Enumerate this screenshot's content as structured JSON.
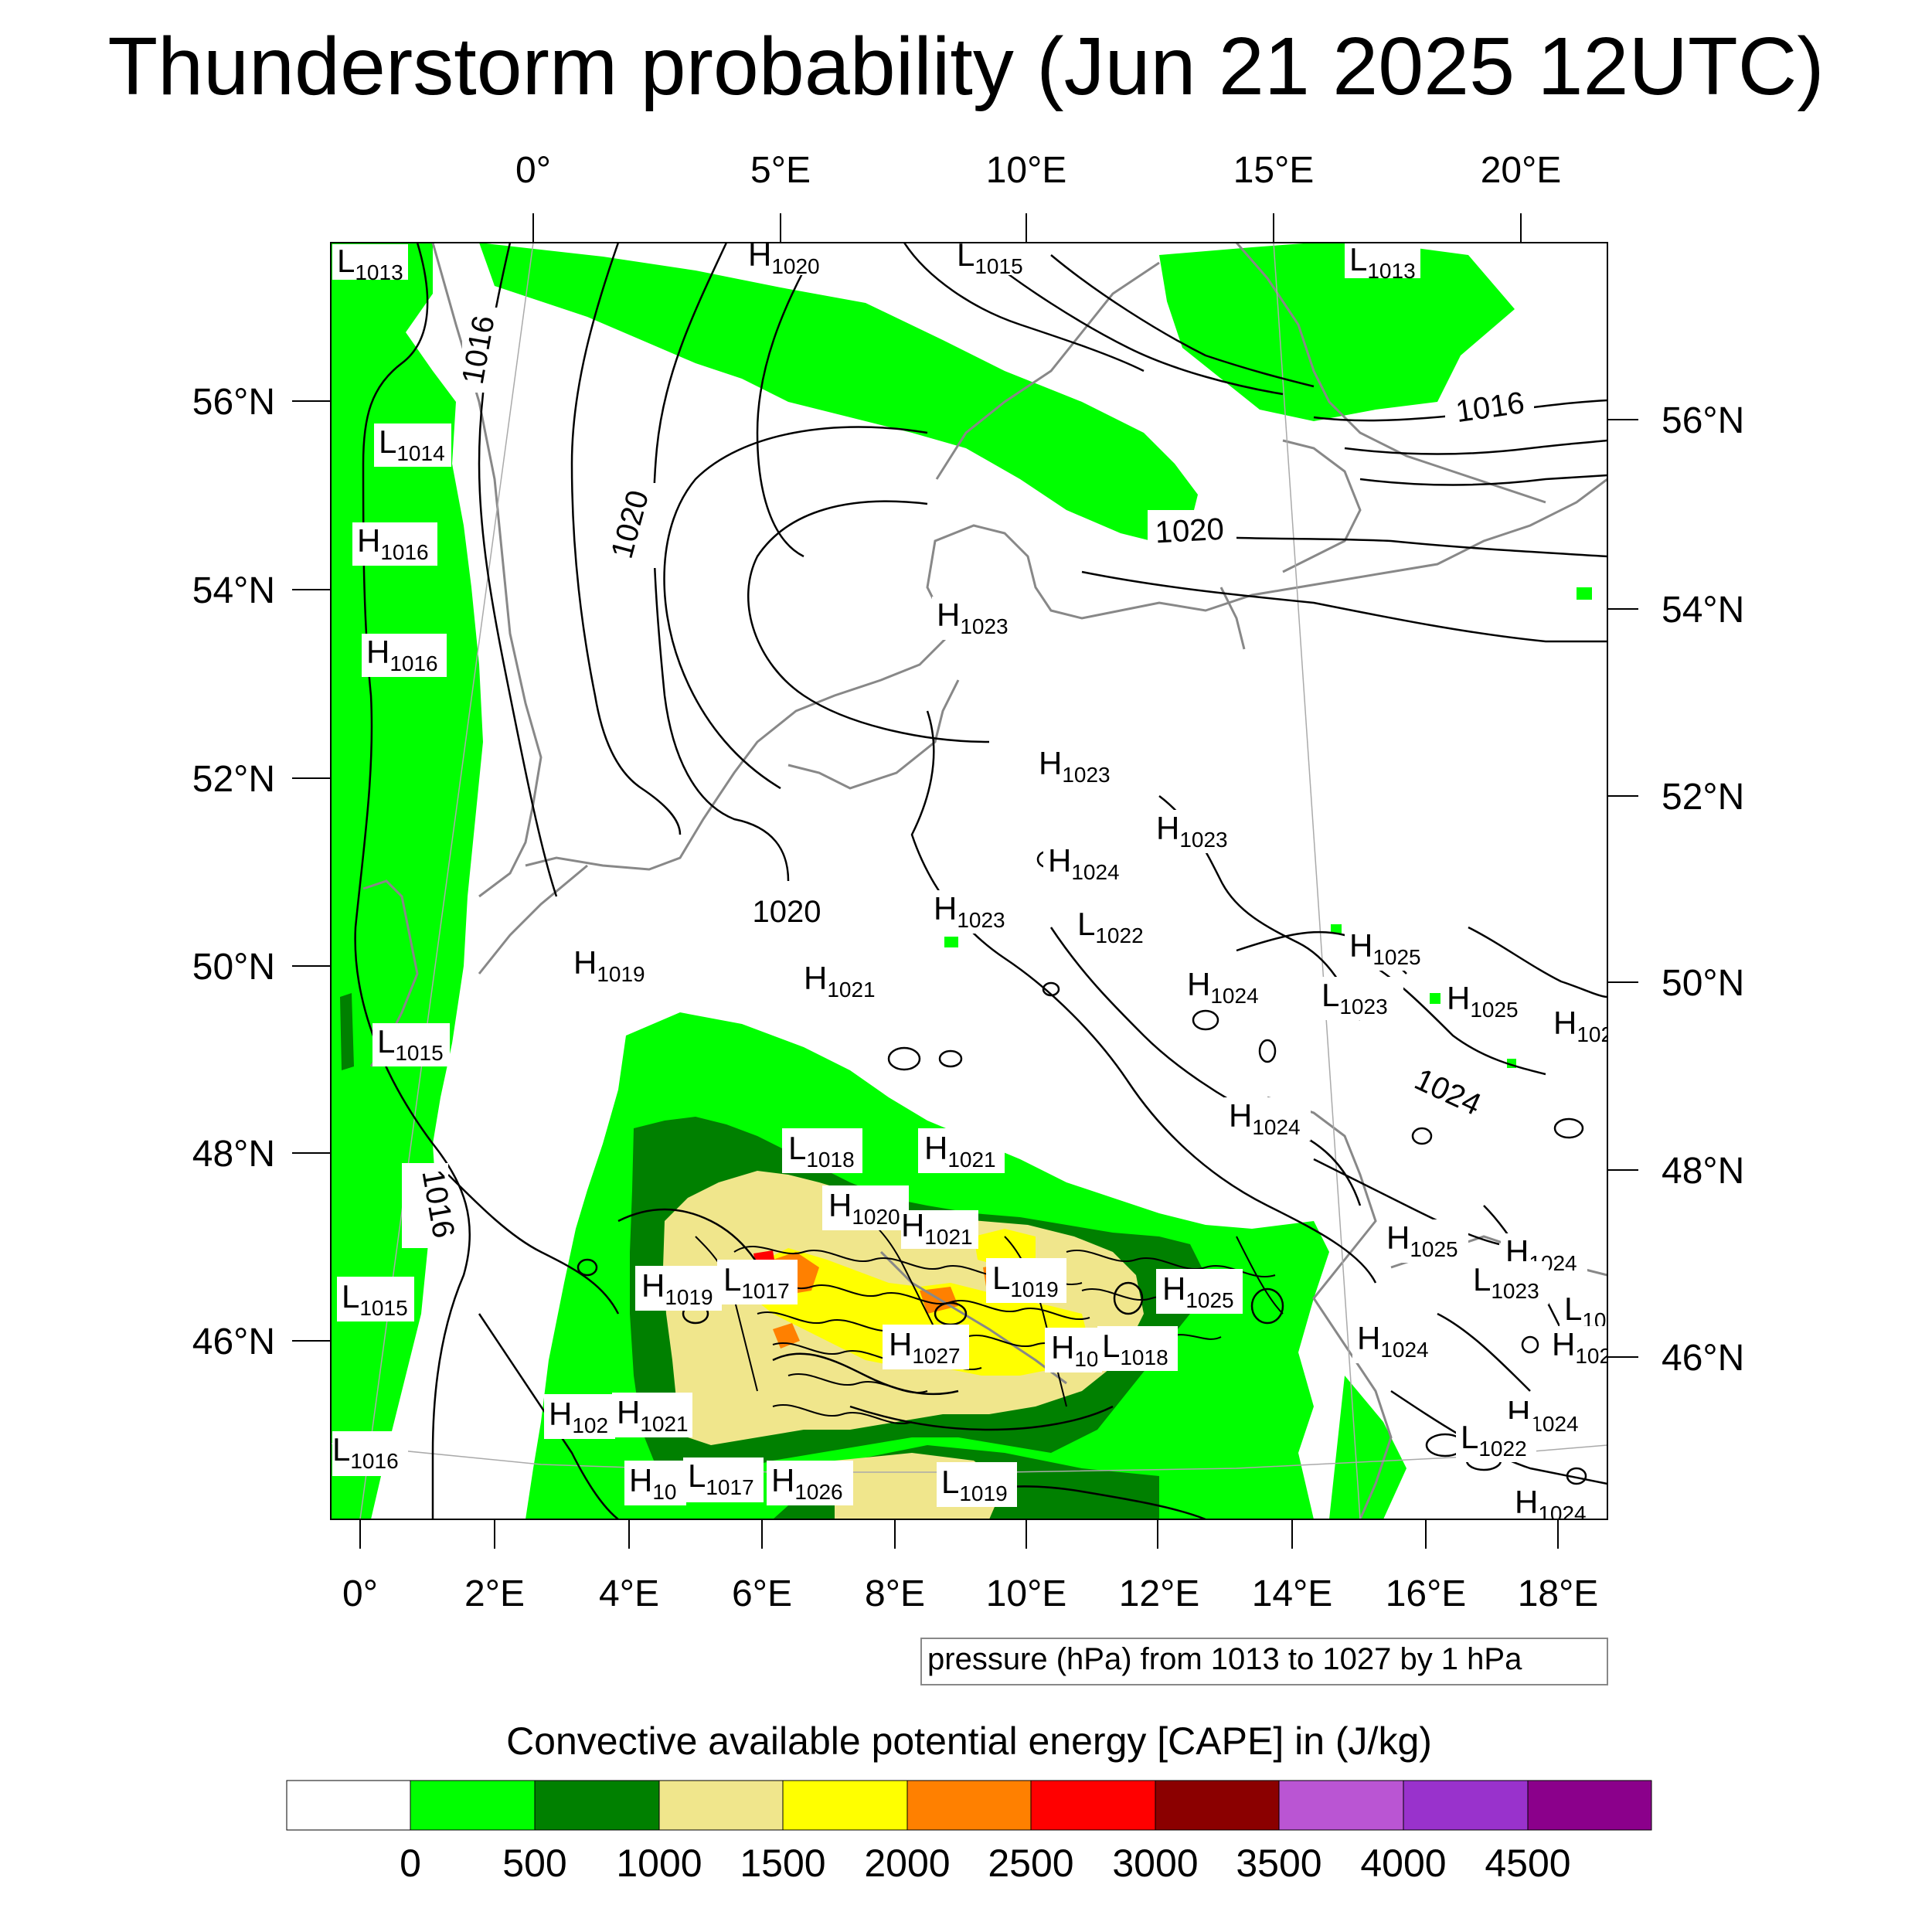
{
  "title": "Thunderstorm probability (Jun 21 2025 12UTC)",
  "top_lon_labels": [
    "0°",
    "5°E",
    "10°E",
    "15°E",
    "20°E"
  ],
  "bottom_lon_labels": [
    "0°",
    "2°E",
    "4°E",
    "6°E",
    "8°E",
    "10°E",
    "12°E",
    "14°E",
    "16°E",
    "18°E"
  ],
  "left_lat_labels": [
    "56°N",
    "54°N",
    "52°N",
    "50°N",
    "48°N",
    "46°N"
  ],
  "right_lat_labels": [
    "56°N",
    "54°N",
    "52°N",
    "50°N",
    "48°N",
    "46°N"
  ],
  "pressure_info": "pressure (hPa) from 1013 to 1027 by 1 hPa",
  "legend_title": "Convective available potential energy [CAPE] in (J/kg)",
  "colorbar": {
    "colors": [
      "#ffffff",
      "#00ff00",
      "#008000",
      "#f0e68c",
      "#ffff00",
      "#ff8000",
      "#ff0000",
      "#8b0000",
      "#ba55d3",
      "#9932cc",
      "#8b008b"
    ],
    "labels": [
      "0",
      "500",
      "1000",
      "1500",
      "2000",
      "2500",
      "3000",
      "3500",
      "4000",
      "4500"
    ]
  },
  "isobar_labels": [
    {
      "text": "1016"
    },
    {
      "text": "1020"
    },
    {
      "text": "1016"
    },
    {
      "text": "1020"
    },
    {
      "text": "1020"
    },
    {
      "text": "1024"
    },
    {
      "text": "1016"
    }
  ],
  "pressure_centers": [
    {
      "letter": "L",
      "value": "1013"
    },
    {
      "letter": "H",
      "value": "1020"
    },
    {
      "letter": "L",
      "value": "1015"
    },
    {
      "letter": "L",
      "value": "1013"
    },
    {
      "letter": "L",
      "value": "1014"
    },
    {
      "letter": "H",
      "value": "1016"
    },
    {
      "letter": "H",
      "value": "1016"
    },
    {
      "letter": "H",
      "value": "1023"
    },
    {
      "letter": "H",
      "value": "1023"
    },
    {
      "letter": "H",
      "value": "1023"
    },
    {
      "letter": "H",
      "value": "1024"
    },
    {
      "letter": "L",
      "value": "1022"
    },
    {
      "letter": "H",
      "value": "1023"
    },
    {
      "letter": "H",
      "value": "1019"
    },
    {
      "letter": "H",
      "value": "1021"
    },
    {
      "letter": "L",
      "value": "1015"
    },
    {
      "letter": "H",
      "value": "1025"
    },
    {
      "letter": "H",
      "value": "1024"
    },
    {
      "letter": "L",
      "value": "1023"
    },
    {
      "letter": "H",
      "value": "1025"
    },
    {
      "letter": "H",
      "value": "102"
    },
    {
      "letter": "H",
      "value": "1024"
    },
    {
      "letter": "L",
      "value": "1018"
    },
    {
      "letter": "H",
      "value": "1021"
    },
    {
      "letter": "H",
      "value": "1020"
    },
    {
      "letter": "H",
      "value": "1021"
    },
    {
      "letter": "H",
      "value": "1025"
    },
    {
      "letter": "H",
      "value": "1024"
    },
    {
      "letter": "L",
      "value": "1023"
    },
    {
      "letter": "L",
      "value": "10"
    },
    {
      "letter": "H",
      "value": "1019"
    },
    {
      "letter": "L",
      "value": "1017"
    },
    {
      "letter": "L",
      "value": "1019"
    },
    {
      "letter": "H",
      "value": "1025"
    },
    {
      "letter": "L",
      "value": "1015"
    },
    {
      "letter": "H",
      "value": "1027"
    },
    {
      "letter": "H",
      "value": "10"
    },
    {
      "letter": "L",
      "value": "1018"
    },
    {
      "letter": "H",
      "value": "1024"
    },
    {
      "letter": "H",
      "value": "102"
    },
    {
      "letter": "H",
      "value": "102"
    },
    {
      "letter": "H",
      "value": "1021"
    },
    {
      "letter": "H",
      "value": "1024"
    },
    {
      "letter": "L",
      "value": "1022"
    },
    {
      "letter": "L",
      "value": "1016"
    },
    {
      "letter": "H",
      "value": "10"
    },
    {
      "letter": "L",
      "value": "1017"
    },
    {
      "letter": "H",
      "value": "1026"
    },
    {
      "letter": "L",
      "value": "1019"
    },
    {
      "letter": "H",
      "value": "1024"
    }
  ]
}
